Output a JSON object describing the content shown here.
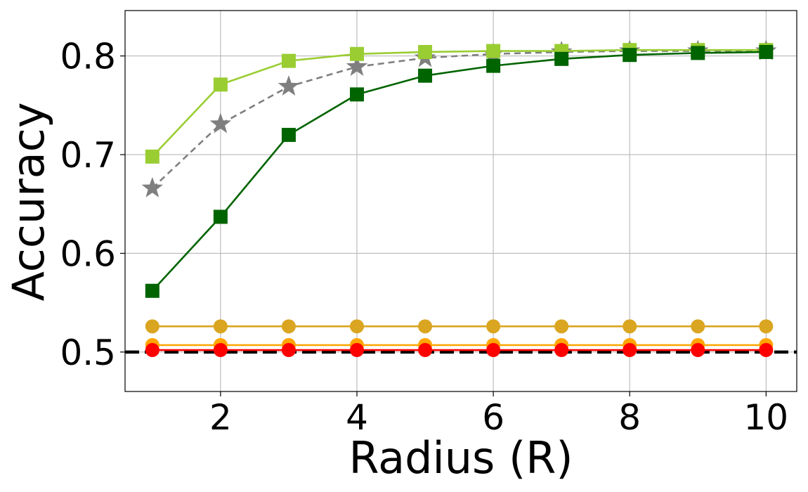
{
  "chart_data": {
    "type": "line",
    "title": "",
    "xlabel": "Radius (R)",
    "ylabel": "Accuracy",
    "xlim": [
      0.6,
      10.45
    ],
    "ylim": [
      0.46,
      0.846
    ],
    "xticks": [
      2,
      4,
      6,
      8,
      10
    ],
    "yticks": [
      0.5,
      0.6,
      0.7,
      0.8
    ],
    "ytick_labels": [
      "0.5",
      "0.6",
      "0.7",
      "0.8"
    ],
    "grid": true,
    "x": [
      1,
      2,
      3,
      4,
      5,
      6,
      7,
      8,
      9,
      10
    ],
    "series": [
      {
        "color": "#7f7f7f",
        "marker": "star",
        "linestyle": "dashed",
        "values": [
          0.666,
          0.731,
          0.769,
          0.789,
          0.798,
          0.802,
          0.804,
          0.805,
          0.805,
          0.805
        ]
      },
      {
        "color": "#9acd32",
        "marker": "square",
        "linestyle": "solid",
        "values": [
          0.698,
          0.771,
          0.795,
          0.802,
          0.804,
          0.805,
          0.805,
          0.806,
          0.806,
          0.806
        ]
      },
      {
        "color": "#006400",
        "marker": "square",
        "linestyle": "solid",
        "values": [
          0.562,
          0.637,
          0.72,
          0.761,
          0.78,
          0.79,
          0.797,
          0.801,
          0.803,
          0.804
        ]
      },
      {
        "color": "#daa520",
        "marker": "circle",
        "linestyle": "solid",
        "values": [
          0.526,
          0.526,
          0.526,
          0.526,
          0.526,
          0.526,
          0.526,
          0.526,
          0.526,
          0.526
        ]
      },
      {
        "color": "#ffa500",
        "marker": "circle",
        "linestyle": "solid",
        "values": [
          0.507,
          0.507,
          0.507,
          0.507,
          0.507,
          0.507,
          0.507,
          0.507,
          0.507,
          0.507
        ]
      },
      {
        "color": "#ff0000",
        "marker": "circle",
        "linestyle": "solid",
        "values": [
          0.502,
          0.502,
          0.502,
          0.502,
          0.502,
          0.502,
          0.502,
          0.502,
          0.502,
          0.502
        ]
      }
    ],
    "reference_line": {
      "y": 0.5,
      "color": "#000000",
      "linestyle": "dashed"
    }
  }
}
